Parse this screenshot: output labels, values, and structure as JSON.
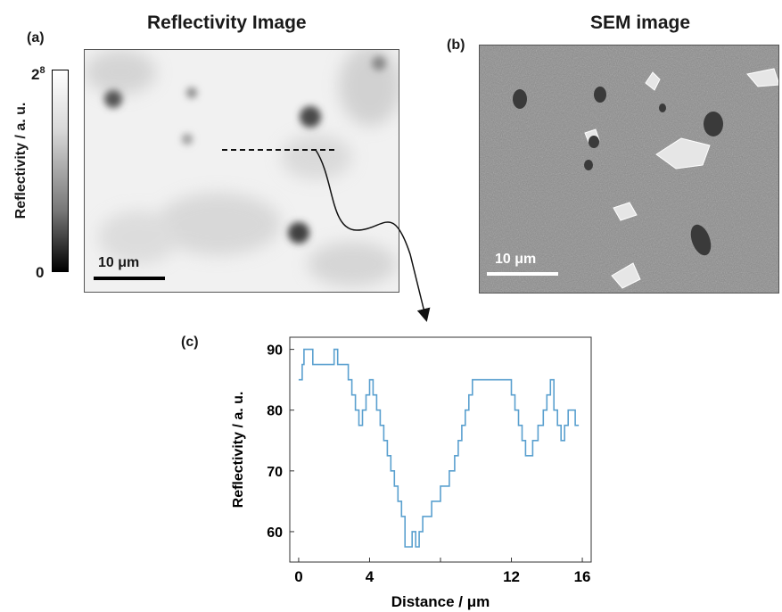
{
  "panel_a": {
    "label": "(a)",
    "title": "Reflectivity Image",
    "colorbar": {
      "label": "Reflectivity / a. u.",
      "max_base": "2",
      "max_exp": "8",
      "min": "0"
    },
    "scalebar": "10 μm"
  },
  "panel_b": {
    "label": "(b)",
    "title": "SEM image",
    "scalebar": "10 μm"
  },
  "panel_c": {
    "label": "(c)"
  },
  "colors": {
    "line": "#5aa0cf",
    "axis": "#333333"
  },
  "chart_data": {
    "type": "line",
    "step": true,
    "xlabel": "Distance / μm",
    "ylabel": "Reflectivity / a. u.",
    "xlim": [
      -0.5,
      16.5
    ],
    "ylim": [
      55,
      92
    ],
    "xticks": [
      0,
      4,
      8,
      12,
      16
    ],
    "xtick_labels": [
      "0",
      "4",
      "",
      "12",
      "16"
    ],
    "yticks": [
      60,
      70,
      80,
      90
    ],
    "series": [
      {
        "x": [
          0.0,
          0.2,
          0.3,
          0.5,
          0.8,
          1.0,
          1.3,
          1.6,
          1.8,
          2.0,
          2.2,
          2.4,
          2.6,
          2.8,
          3.0,
          3.2,
          3.4,
          3.6,
          3.8,
          4.0,
          4.2,
          4.4,
          4.6,
          4.8,
          5.0,
          5.2,
          5.4,
          5.6,
          5.8,
          6.0,
          6.2,
          6.4,
          6.6,
          6.8,
          7.0,
          7.5,
          8.0,
          8.5,
          8.8,
          9.0,
          9.2,
          9.4,
          9.6,
          9.8,
          10.0,
          10.2,
          10.4,
          10.6,
          10.8,
          11.0,
          11.2,
          11.4,
          11.6,
          11.8,
          12.0,
          12.2,
          12.4,
          12.6,
          12.8,
          13.0,
          13.2,
          13.5,
          13.8,
          14.0,
          14.2,
          14.4,
          14.6,
          14.8,
          15.0,
          15.2,
          15.4,
          15.6,
          15.8
        ],
        "y": [
          85,
          87.5,
          90,
          90,
          87.5,
          87.5,
          87.5,
          87.5,
          87.5,
          90,
          87.5,
          87.5,
          87.5,
          85,
          82.5,
          80,
          77.5,
          80,
          82.5,
          85,
          82.5,
          80,
          77.5,
          75,
          72.5,
          70,
          67.5,
          65,
          62.5,
          57.5,
          57.5,
          60,
          57.5,
          60,
          62.5,
          65,
          67.5,
          70,
          72.5,
          75,
          77.5,
          80,
          82.5,
          85,
          85,
          85,
          85,
          85,
          85,
          85,
          85,
          85,
          85,
          85,
          82.5,
          80,
          77.5,
          75,
          72.5,
          72.5,
          75,
          77.5,
          80,
          82.5,
          85,
          80,
          77.5,
          75,
          77.5,
          80,
          80,
          77.5,
          77.5
        ]
      }
    ]
  }
}
